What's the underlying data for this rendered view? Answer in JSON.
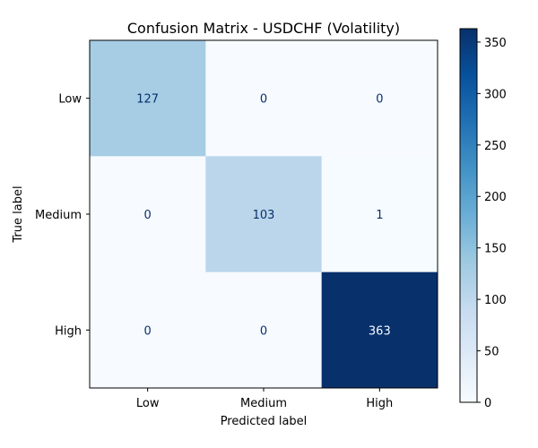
{
  "chart_data": {
    "type": "heatmap",
    "title": "Confusion Matrix - USDCHF (Volatility)",
    "xlabel": "Predicted label",
    "ylabel": "True label",
    "x_categories": [
      "Low",
      "Medium",
      "High"
    ],
    "y_categories": [
      "Low",
      "Medium",
      "High"
    ],
    "values": [
      [
        127,
        0,
        0
      ],
      [
        0,
        103,
        1
      ],
      [
        0,
        0,
        363
      ]
    ],
    "colormap": "Blues",
    "colorbar": {
      "range": [
        0,
        363
      ],
      "ticks": [
        0,
        50,
        100,
        150,
        200,
        250,
        300,
        350
      ]
    },
    "colors": {
      "cmap_low": "#f7fbff",
      "cmap_mid": "#6baed6",
      "cmap_high": "#08306b",
      "text_light": "#f7fbff",
      "text_dark": "#08306b"
    }
  }
}
